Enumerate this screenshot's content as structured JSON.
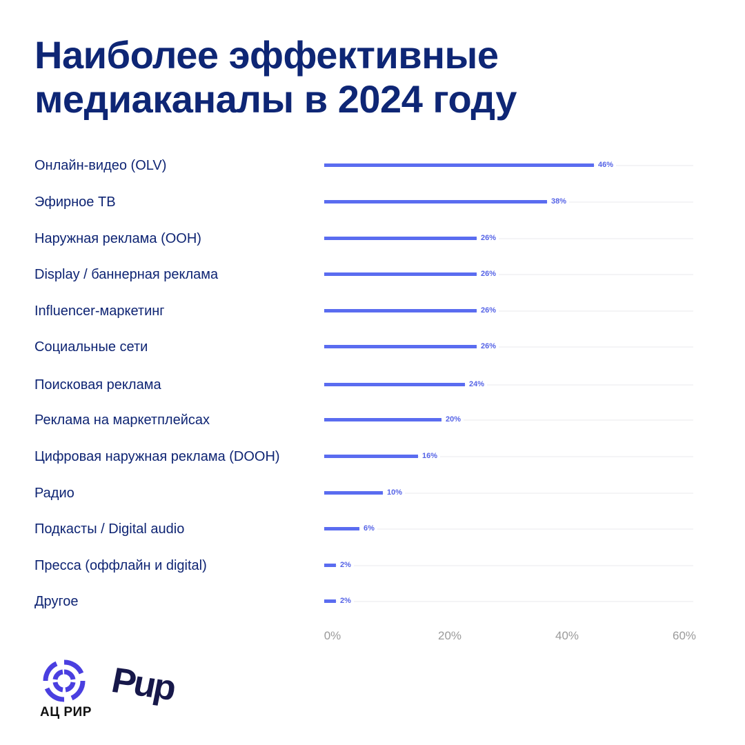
{
  "title": {
    "line1": "Наиболее эффективные",
    "line2": "медиаканалы в 2024 году"
  },
  "chart_data": {
    "type": "bar",
    "orientation": "horizontal",
    "title": "Наиболее эффективные медиаканалы в 2024 году",
    "categories": [
      "Онлайн-видео (OLV)",
      "Эфирное ТВ",
      "Наружная реклама (OOH)",
      "Display / баннерная реклама",
      "Influencer-маркетинг",
      "Социальные сети",
      "Поисковая реклама",
      "Реклама на маркетплейсах",
      "Цифровая наружная реклама (DOOH)",
      "Радио",
      "Подкасты / Digital audio",
      "Пресса (оффлайн и digital)",
      "Другое"
    ],
    "values": [
      46,
      38,
      26,
      26,
      26,
      26,
      24,
      20,
      16,
      10,
      6,
      2,
      2
    ],
    "value_labels": [
      "46%",
      "38%",
      "26%",
      "26%",
      "26%",
      "26%",
      "24%",
      "20%",
      "16%",
      "10%",
      "6%",
      "2%",
      "2%"
    ],
    "xlabel": "",
    "ylabel": "",
    "xlim": [
      0,
      60
    ],
    "x_ticks": [
      "0%",
      "20%",
      "40%",
      "60%"
    ],
    "grid": false,
    "bar_color": "#5a6cf0",
    "legend": null
  },
  "logos": {
    "left_text": "АЦ РИР",
    "right_text": "Рир"
  }
}
